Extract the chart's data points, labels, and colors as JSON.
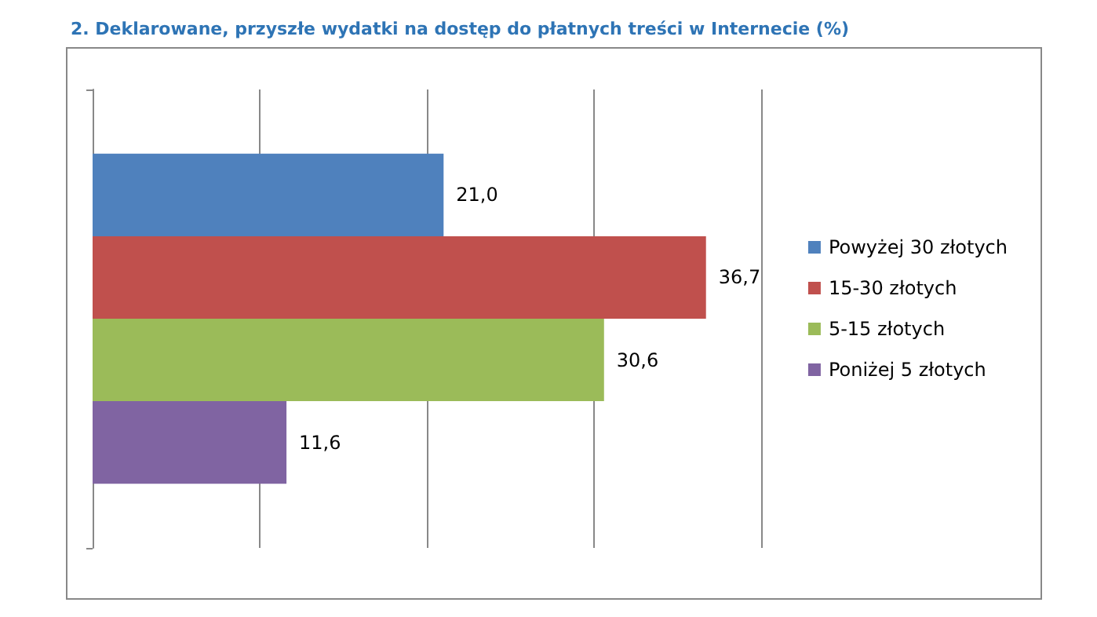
{
  "chart_data": {
    "type": "bar",
    "orientation": "horizontal",
    "title": "2. Deklarowane, przyszłe wydatki na dostęp do płatnych treści w Internecie (%)",
    "categories": [
      null
    ],
    "series": [
      {
        "name": "Powyżej 30 złotych",
        "color": "#4f81bd",
        "values": [
          21.0
        ],
        "value_labels": [
          "21,0"
        ]
      },
      {
        "name": "15-30 złotych",
        "color": "#c0504d",
        "values": [
          36.7
        ],
        "value_labels": [
          "36,7"
        ]
      },
      {
        "name": "5-15 złotych",
        "color": "#9bbb59",
        "values": [
          30.6
        ],
        "value_labels": [
          "30,6"
        ]
      },
      {
        "name": "Poniżej 5 złotych",
        "color": "#8064a2",
        "values": [
          11.6
        ],
        "value_labels": [
          "11,6"
        ]
      }
    ],
    "grid": "x",
    "legend": "right"
  }
}
